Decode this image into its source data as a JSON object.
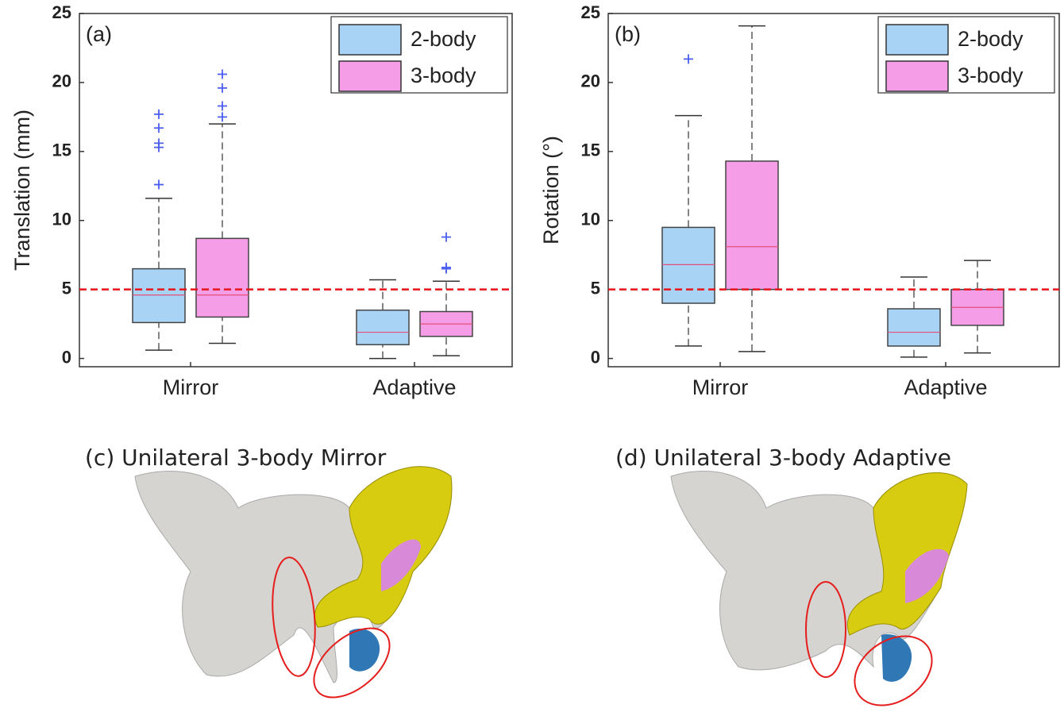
{
  "chart_data": [
    {
      "type": "box",
      "annotation": "(a)",
      "ylabel": "Translation (mm)",
      "categories": [
        "Mirror",
        "Adaptive"
      ],
      "ylim": [
        -0.6,
        25
      ],
      "yticks": [
        0,
        5,
        10,
        15,
        20,
        25
      ],
      "reference_line": 5,
      "reference_color": "#e8141c",
      "legend": "upper right",
      "series": [
        {
          "name": "2-body",
          "color": "#a9d3f5",
          "values": [
            {
              "whislo": 0.6,
              "q1": 2.6,
              "med": 4.6,
              "q3": 6.5,
              "whishi": 11.6,
              "fliers": [
                12.6,
                15.3,
                15.6,
                16.7,
                17.7
              ]
            },
            {
              "whislo": 0.0,
              "q1": 1.0,
              "med": 1.9,
              "q3": 3.5,
              "whishi": 5.7,
              "fliers": []
            }
          ]
        },
        {
          "name": "3-body",
          "color": "#f59de6",
          "values": [
            {
              "whislo": 1.1,
              "q1": 3.0,
              "med": 4.6,
              "q3": 8.7,
              "whishi": 17.0,
              "fliers": [
                17.5,
                18.3,
                19.6,
                20.6
              ]
            },
            {
              "whislo": 0.2,
              "q1": 1.6,
              "med": 2.5,
              "q3": 3.4,
              "whishi": 5.6,
              "fliers": [
                6.5,
                6.6,
                8.8
              ]
            }
          ]
        }
      ]
    },
    {
      "type": "box",
      "annotation": "(b)",
      "ylabel": "Rotation (°)",
      "categories": [
        "Mirror",
        "Adaptive"
      ],
      "ylim": [
        -0.6,
        25
      ],
      "yticks": [
        0,
        5,
        10,
        15,
        20,
        25
      ],
      "reference_line": 5,
      "reference_color": "#e8141c",
      "legend": "upper right",
      "series": [
        {
          "name": "2-body",
          "color": "#a9d3f5",
          "values": [
            {
              "whislo": 0.9,
              "q1": 4.0,
              "med": 6.8,
              "q3": 9.5,
              "whishi": 17.6,
              "fliers": [
                21.7
              ]
            },
            {
              "whislo": 0.1,
              "q1": 0.9,
              "med": 1.9,
              "q3": 3.6,
              "whishi": 5.9,
              "fliers": []
            }
          ]
        },
        {
          "name": "3-body",
          "color": "#f59de6",
          "values": [
            {
              "whislo": 0.5,
              "q1": 5.0,
              "med": 8.1,
              "q3": 14.3,
              "whishi": 24.1,
              "fliers": []
            },
            {
              "whislo": 0.4,
              "q1": 2.4,
              "med": 3.7,
              "q3": 5.0,
              "whishi": 7.1,
              "fliers": []
            }
          ]
        }
      ]
    }
  ],
  "renderings": [
    {
      "title": "(c) Unilateral 3-body Mirror"
    },
    {
      "title": "(d) Unilateral 3-body Adaptive"
    }
  ]
}
